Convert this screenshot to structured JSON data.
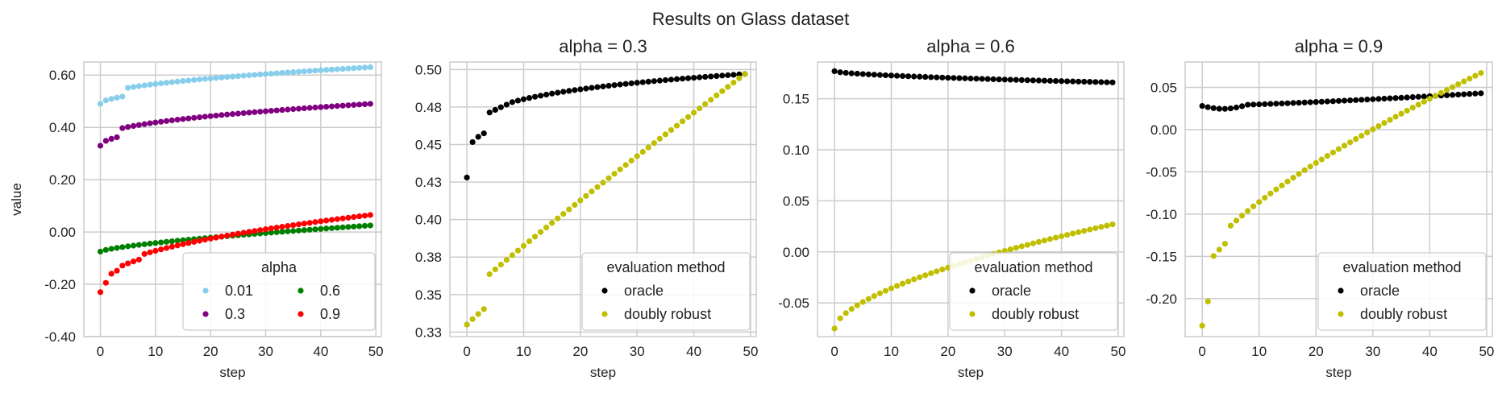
{
  "suptitle": "Results on Glass dataset",
  "colors": {
    "grid": "#cccccc",
    "spine": "#cccccc",
    "text": "#222222",
    "a001": "#87ceeb",
    "a03": "#800080",
    "a06": "#008000",
    "a09": "#ff0000",
    "oracle": "#000000",
    "dr": "#bfbf00"
  },
  "chart_data": [
    {
      "type": "scatter",
      "title": "",
      "xlabel": "step",
      "ylabel": "value",
      "xlim": [
        -3,
        51
      ],
      "ylim": [
        -0.4,
        0.65
      ],
      "xticks": [
        0,
        10,
        20,
        30,
        40,
        50
      ],
      "yticks": [
        -0.4,
        -0.2,
        0.0,
        0.2,
        0.4,
        0.6
      ],
      "ytick_labels": [
        "-0.40",
        "-0.20",
        "0.00",
        "0.20",
        "0.40",
        "0.60"
      ],
      "legend": {
        "title": "alpha",
        "position": "lower-right",
        "columns": 2
      },
      "series": [
        {
          "name": "0.01",
          "color": "#87ceeb",
          "y0": 0.49,
          "y1": 0.63,
          "k": 0.55,
          "jumps": [
            [
              5,
              0.03
            ]
          ]
        },
        {
          "name": "0.3",
          "color": "#800080",
          "y0": 0.33,
          "y1": 0.49,
          "k": 0.5,
          "jumps": [
            [
              4,
              0.03
            ]
          ]
        },
        {
          "name": "0.6",
          "color": "#008000",
          "y0": -0.075,
          "y1": 0.025,
          "k": 0.7,
          "jumps": []
        },
        {
          "name": "0.9",
          "color": "#ff0000",
          "y0": -0.23,
          "y1": 0.065,
          "k": 0.5,
          "jumps": [
            [
              2,
              0.02
            ],
            [
              4,
              0.01
            ],
            [
              8,
              0.015
            ]
          ]
        }
      ]
    },
    {
      "type": "scatter",
      "title": "alpha = 0.3",
      "xlabel": "step",
      "ylabel": "",
      "xlim": [
        -3,
        51
      ],
      "ylim": [
        0.322,
        0.505
      ],
      "xticks": [
        0,
        10,
        20,
        30,
        40,
        50
      ],
      "yticks": [
        0.325,
        0.35,
        0.375,
        0.4,
        0.425,
        0.45,
        0.475,
        0.5
      ],
      "ytick_labels": [
        "0.33",
        "0.35",
        "0.38",
        "0.40",
        "0.43",
        "0.45",
        "0.48",
        "0.50"
      ],
      "legend": {
        "title": "evaluation method",
        "position": "lower-right",
        "columns": 1
      },
      "series": [
        {
          "name": "oracle",
          "color": "#000000",
          "y0": 0.428,
          "y1": 0.497,
          "k": 0.22,
          "jumps": [
            [
              4,
              0.012
            ]
          ],
          "dip": 0.0015
        },
        {
          "name": "doubly robust",
          "color": "#bfbf00",
          "y0": 0.33,
          "y1": 0.497,
          "k": 0.95,
          "jumps": [
            [
              4,
              0.02
            ]
          ]
        }
      ]
    },
    {
      "type": "scatter",
      "title": "alpha = 0.6",
      "xlabel": "step",
      "ylabel": "",
      "xlim": [
        -3,
        51
      ],
      "ylim": [
        -0.083,
        0.186
      ],
      "xticks": [
        0,
        10,
        20,
        30,
        40,
        50
      ],
      "yticks": [
        -0.05,
        0.0,
        0.05,
        0.1,
        0.15
      ],
      "ytick_labels": [
        "-0.05",
        "0.00",
        "0.05",
        "0.10",
        "0.15"
      ],
      "legend": {
        "title": "evaluation method",
        "position": "lower-right",
        "columns": 1
      },
      "series": [
        {
          "name": "oracle",
          "color": "#000000",
          "y0": 0.177,
          "y1": 0.166,
          "k": 0.6,
          "jumps": []
        },
        {
          "name": "doubly robust",
          "color": "#bfbf00",
          "y0": -0.075,
          "y1": 0.027,
          "k": 0.6,
          "jumps": []
        }
      ]
    },
    {
      "type": "scatter",
      "title": "alpha = 0.9",
      "xlabel": "step",
      "ylabel": "",
      "xlim": [
        -3,
        51
      ],
      "ylim": [
        -0.245,
        0.08
      ],
      "xticks": [
        0,
        10,
        20,
        30,
        40,
        50
      ],
      "yticks": [
        -0.2,
        -0.15,
        -0.1,
        -0.05,
        0.0,
        0.05
      ],
      "ytick_labels": [
        "-0.20",
        "-0.15",
        "-0.10",
        "-0.05",
        "0.00",
        "0.05"
      ],
      "legend": {
        "title": "evaluation method",
        "position": "lower-right",
        "columns": 1
      },
      "series": [
        {
          "name": "oracle",
          "color": "#000000",
          "y0": 0.028,
          "y1": 0.043,
          "k": 1.3,
          "jumps": [],
          "dip": 0.004
        },
        {
          "name": "doubly robust",
          "color": "#bfbf00",
          "y0": -0.232,
          "y1": 0.067,
          "k": 0.72,
          "jumps": [
            [
              1,
              0.015
            ],
            [
              2,
              0.045
            ],
            [
              5,
              0.015
            ]
          ]
        }
      ]
    }
  ]
}
